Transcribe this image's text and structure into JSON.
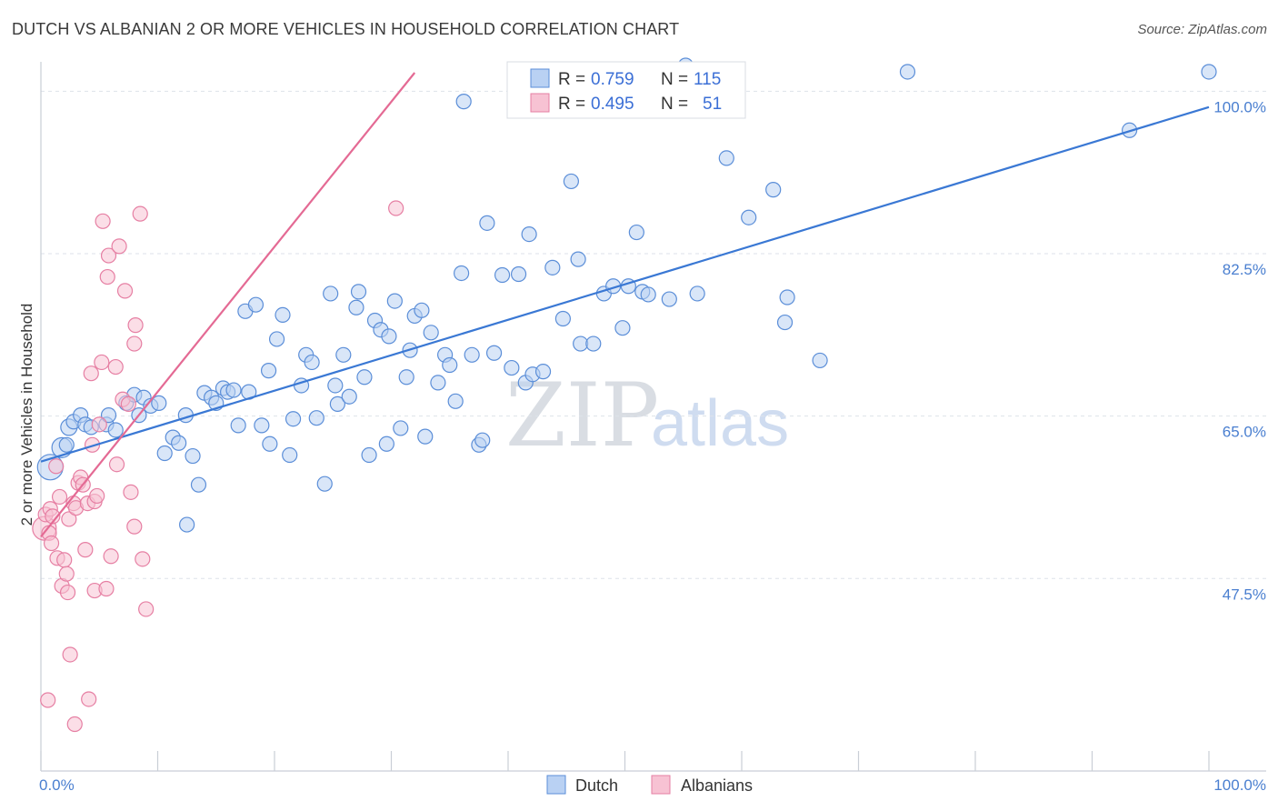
{
  "title": "DUTCH VS ALBANIAN 2 OR MORE VEHICLES IN HOUSEHOLD CORRELATION CHART",
  "source": "Source: ZipAtlas.com",
  "watermark": {
    "zip": "ZIP",
    "atlas": "atlas"
  },
  "colors": {
    "dutch_fill": "#b9d1f3",
    "dutch_stroke": "#5b8ed8",
    "dutch_line": "#3a78d4",
    "alb_fill": "#f7c2d3",
    "alb_stroke": "#e67fa3",
    "alb_line": "#e46a94",
    "grid": "#dde2ea",
    "axis_text": "#4a7fd0"
  },
  "legend_top": [
    {
      "name": "Dutch",
      "r_label": "R =",
      "r_value": "0.759",
      "n_label": "N =",
      "n_value": "115"
    },
    {
      "name": "Albanians",
      "r_label": "R =",
      "r_value": "0.495",
      "n_label": "N =",
      "n_value": "51"
    }
  ],
  "chart_data": {
    "type": "scatter",
    "title": "DUTCH VS ALBANIAN 2 OR MORE VEHICLES IN HOUSEHOLD CORRELATION CHART",
    "xlabel": "",
    "ylabel": "2 or more Vehicles in Household",
    "xlim": [
      0,
      100
    ],
    "ylim": [
      29.5,
      102
    ],
    "x_tick_labels": [
      "0.0%",
      "100.0%"
    ],
    "y_ticks": [
      47.5,
      65.0,
      82.5,
      100.0
    ],
    "y_tick_labels": [
      "47.5%",
      "65.0%",
      "82.5%",
      "100.0%"
    ],
    "legend": [
      "Dutch",
      "Albanians"
    ],
    "series": [
      {
        "name": "Dutch",
        "r": 0.759,
        "n": 115,
        "trend": {
          "x": [
            0,
            100
          ],
          "y": [
            60.1,
            98.3
          ]
        },
        "points": [
          [
            0.8,
            59.5,
            14
          ],
          [
            1.8,
            61.6,
            11
          ],
          [
            2.2,
            61.9,
            8
          ],
          [
            2.4,
            63.8,
            9
          ],
          [
            2.8,
            64.4,
            8
          ],
          [
            3.4,
            65.1,
            8
          ],
          [
            3.8,
            64.1,
            8
          ],
          [
            4.3,
            63.8,
            8
          ],
          [
            5.6,
            64.1,
            8
          ],
          [
            5.8,
            65.1,
            8
          ],
          [
            6.4,
            63.5,
            8
          ],
          [
            7.3,
            66.4,
            8
          ],
          [
            8.0,
            67.3,
            8
          ],
          [
            8.4,
            65.1,
            8
          ],
          [
            8.8,
            67.0,
            8
          ],
          [
            9.4,
            66.1,
            8
          ],
          [
            10.1,
            66.4,
            8
          ],
          [
            10.6,
            61.0,
            8
          ],
          [
            11.3,
            62.7,
            8
          ],
          [
            11.8,
            62.1,
            8
          ],
          [
            12.4,
            65.1,
            8
          ],
          [
            13.0,
            60.7,
            8
          ],
          [
            13.5,
            57.6,
            8
          ],
          [
            12.5,
            53.3,
            8
          ],
          [
            14.0,
            67.5,
            8
          ],
          [
            14.6,
            67.0,
            8
          ],
          [
            15.0,
            66.4,
            8
          ],
          [
            15.6,
            68.0,
            8
          ],
          [
            16.0,
            67.6,
            8
          ],
          [
            16.5,
            67.8,
            8
          ],
          [
            16.9,
            64.0,
            8
          ],
          [
            17.5,
            76.3,
            8
          ],
          [
            17.8,
            67.6,
            8
          ],
          [
            18.4,
            77.0,
            8
          ],
          [
            18.9,
            64.0,
            8
          ],
          [
            19.5,
            69.9,
            8
          ],
          [
            19.6,
            62.0,
            8
          ],
          [
            20.2,
            73.3,
            8
          ],
          [
            20.7,
            75.9,
            8
          ],
          [
            21.3,
            60.8,
            8
          ],
          [
            21.6,
            64.7,
            8
          ],
          [
            22.3,
            68.3,
            8
          ],
          [
            22.7,
            71.6,
            8
          ],
          [
            23.2,
            70.8,
            8
          ],
          [
            23.6,
            64.8,
            8
          ],
          [
            24.3,
            57.7,
            8
          ],
          [
            24.8,
            78.2,
            8
          ],
          [
            25.2,
            68.3,
            8
          ],
          [
            25.4,
            66.3,
            8
          ],
          [
            25.9,
            71.6,
            8
          ],
          [
            26.4,
            67.1,
            8
          ],
          [
            27.0,
            76.7,
            8
          ],
          [
            27.2,
            78.4,
            8
          ],
          [
            27.7,
            69.2,
            8
          ],
          [
            28.1,
            60.8,
            8
          ],
          [
            28.6,
            75.3,
            8
          ],
          [
            29.1,
            74.3,
            8
          ],
          [
            29.6,
            62.0,
            8
          ],
          [
            29.8,
            73.6,
            8
          ],
          [
            30.3,
            77.4,
            8
          ],
          [
            30.8,
            63.7,
            8
          ],
          [
            31.3,
            69.2,
            8
          ],
          [
            31.6,
            72.1,
            8
          ],
          [
            32.0,
            75.8,
            8
          ],
          [
            32.6,
            76.4,
            8
          ],
          [
            32.9,
            62.8,
            8
          ],
          [
            33.4,
            74.0,
            8
          ],
          [
            34.0,
            68.6,
            8
          ],
          [
            34.6,
            71.6,
            8
          ],
          [
            35.0,
            70.5,
            8
          ],
          [
            35.5,
            66.6,
            8
          ],
          [
            36.0,
            80.4,
            8
          ],
          [
            36.2,
            98.9,
            8
          ],
          [
            36.9,
            71.6,
            8
          ],
          [
            37.5,
            61.9,
            8
          ],
          [
            37.8,
            62.4,
            8
          ],
          [
            38.2,
            85.8,
            8
          ],
          [
            38.8,
            71.8,
            8
          ],
          [
            39.5,
            80.2,
            8
          ],
          [
            40.3,
            70.2,
            8
          ],
          [
            40.9,
            80.3,
            8
          ],
          [
            41.5,
            68.6,
            8
          ],
          [
            41.8,
            84.6,
            8
          ],
          [
            42.1,
            69.5,
            8
          ],
          [
            43.0,
            69.8,
            8
          ],
          [
            43.8,
            81.0,
            8
          ],
          [
            44.7,
            75.5,
            8
          ],
          [
            45.4,
            90.3,
            8
          ],
          [
            46.0,
            81.9,
            8
          ],
          [
            46.2,
            72.8,
            8
          ],
          [
            47.3,
            72.8,
            8
          ],
          [
            48.2,
            78.2,
            8
          ],
          [
            49.0,
            79.0,
            8
          ],
          [
            49.8,
            74.5,
            8
          ],
          [
            50.3,
            79.0,
            8
          ],
          [
            51.0,
            84.8,
            8
          ],
          [
            51.5,
            78.4,
            8
          ],
          [
            52.0,
            78.1,
            8
          ],
          [
            53.8,
            77.6,
            8
          ],
          [
            55.2,
            104.1,
            8
          ],
          [
            56.2,
            78.2,
            8
          ],
          [
            58.7,
            92.8,
            8
          ],
          [
            60.6,
            86.4,
            8
          ],
          [
            62.7,
            89.4,
            8
          ],
          [
            63.7,
            75.1,
            8
          ],
          [
            63.9,
            77.8,
            8
          ],
          [
            66.7,
            71.0,
            8
          ],
          [
            74.2,
            102.1,
            8
          ],
          [
            100.0,
            102.1,
            8
          ],
          [
            93.2,
            95.8,
            8
          ]
        ]
      },
      {
        "name": "Albanians",
        "r": 0.495,
        "n": 51,
        "trend": {
          "x": [
            0,
            32
          ],
          "y": [
            52.0,
            102.0
          ]
        },
        "points": [
          [
            0.3,
            52.9,
            13
          ],
          [
            0.4,
            54.4,
            8
          ],
          [
            0.7,
            52.4,
            8
          ],
          [
            0.8,
            55.0,
            8
          ],
          [
            0.9,
            51.3,
            8
          ],
          [
            1.0,
            54.2,
            8
          ],
          [
            1.3,
            59.6,
            8
          ],
          [
            1.4,
            49.7,
            8
          ],
          [
            1.6,
            56.3,
            8
          ],
          [
            1.8,
            46.7,
            8
          ],
          [
            2.0,
            49.5,
            8
          ],
          [
            2.2,
            48.0,
            8
          ],
          [
            2.3,
            46.0,
            8
          ],
          [
            2.4,
            53.9,
            8
          ],
          [
            2.5,
            39.3,
            8
          ],
          [
            2.8,
            55.6,
            8
          ],
          [
            2.9,
            31.8,
            8
          ],
          [
            3.0,
            55.1,
            8
          ],
          [
            3.2,
            57.8,
            8
          ],
          [
            3.4,
            58.4,
            8
          ],
          [
            3.6,
            57.6,
            8
          ],
          [
            3.8,
            50.6,
            8
          ],
          [
            4.0,
            55.6,
            8
          ],
          [
            4.1,
            34.5,
            8
          ],
          [
            4.3,
            69.6,
            8
          ],
          [
            4.4,
            61.9,
            8
          ],
          [
            4.6,
            55.8,
            8
          ],
          [
            4.8,
            56.4,
            8
          ],
          [
            4.6,
            46.2,
            8
          ],
          [
            5.0,
            64.1,
            8
          ],
          [
            5.2,
            70.8,
            8
          ],
          [
            5.3,
            86.0,
            8
          ],
          [
            5.6,
            46.4,
            8
          ],
          [
            5.7,
            80.0,
            8
          ],
          [
            5.8,
            82.3,
            8
          ],
          [
            6.0,
            49.9,
            8
          ],
          [
            6.4,
            70.3,
            8
          ],
          [
            6.5,
            59.8,
            8
          ],
          [
            6.7,
            83.3,
            8
          ],
          [
            7.0,
            66.8,
            8
          ],
          [
            7.2,
            78.5,
            8
          ],
          [
            7.5,
            66.3,
            8
          ],
          [
            7.7,
            56.8,
            8
          ],
          [
            8.0,
            53.1,
            8
          ],
          [
            8.0,
            72.8,
            8
          ],
          [
            8.1,
            74.8,
            8
          ],
          [
            8.5,
            86.8,
            8
          ],
          [
            8.7,
            49.6,
            8
          ],
          [
            9.0,
            44.2,
            8
          ],
          [
            0.6,
            34.4,
            8
          ],
          [
            30.4,
            87.4,
            8
          ]
        ]
      }
    ]
  }
}
